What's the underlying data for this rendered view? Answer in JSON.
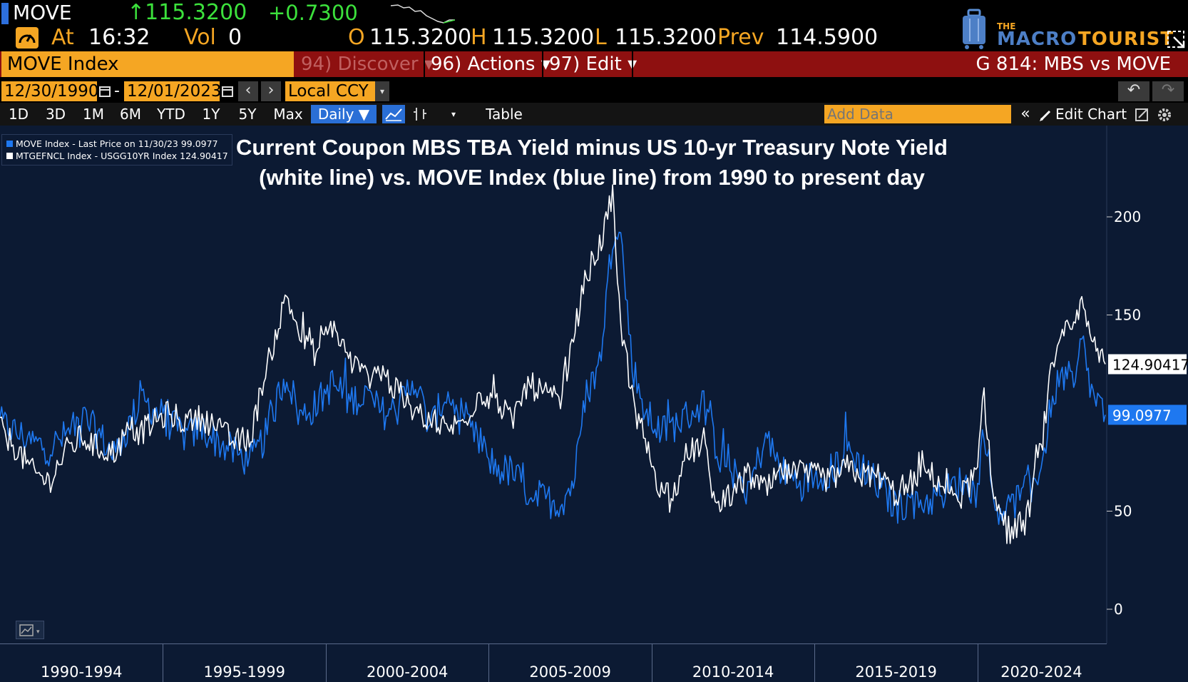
{
  "header": {
    "ticker": "MOVE",
    "last": "↑115.3200",
    "change": "+0.7300",
    "at_label": "At",
    "time": "16:32",
    "vol_label": "Vol",
    "vol": "0",
    "o_label": "O",
    "open": "115.3200",
    "h_label": "H",
    "high": "115.3200",
    "l_label": "L",
    "low": "115.3200",
    "prev_label": "Prev",
    "prev": "114.5900",
    "logo_small": "THE",
    "logo_word1": "MACRO",
    "logo_word2": "TOURIST"
  },
  "function_bar": {
    "security": "MOVE Index",
    "discover": "94) Discover ▾",
    "actions": "96) Actions ▾",
    "edit": "97) Edit ▾",
    "page_title": "G 814: MBS vs MOVE"
  },
  "controls": {
    "start_date": "12/30/1990",
    "end_date": "12/01/2023",
    "date_sep": "-",
    "currency": "Local CCY",
    "periods": [
      "1D",
      "3D",
      "1M",
      "6M",
      "YTD",
      "1Y",
      "5Y",
      "Max"
    ],
    "frequency": "Daily ▼",
    "table": "Table",
    "add_data_placeholder": "Add Data",
    "edit_chart": "Edit Chart"
  },
  "chart_data": {
    "type": "line",
    "title": "Current Coupon MBS TBA Yield minus US 10-yr Treasury Note Yield (white line) vs. MOVE Index (blue line) from 1990 to present day",
    "ylim": [
      0,
      230
    ],
    "yticks": [
      0,
      50,
      150,
      200
    ],
    "x_range": [
      1990.0,
      2023.92
    ],
    "x_groups": [
      "1990-1994",
      "1995-1999",
      "2000-2004",
      "2005-2009",
      "2010-2014",
      "2015-2019",
      "2020-2024"
    ],
    "legend_entries": [
      "MOVE Index - Last Price on 11/30/23 99.0977",
      "MTGEFNCL Index - USGG10YR Index     124.90417"
    ],
    "colors": {
      "move": "#1e78f0",
      "spread": "#ffffff",
      "bg": "#0c1a33"
    },
    "series": [
      {
        "name": "MOVE Index",
        "last_label": "99.0977",
        "x": [
          1990.0,
          1990.5,
          1991.0,
          1991.5,
          1992.0,
          1992.5,
          1993.0,
          1993.5,
          1994.0,
          1994.3,
          1994.7,
          1995.2,
          1995.7,
          1996.2,
          1996.7,
          1997.2,
          1997.7,
          1998.2,
          1998.6,
          1998.8,
          1999.2,
          1999.7,
          2000.2,
          2000.7,
          2001.2,
          2001.7,
          2002.2,
          2002.7,
          2003.2,
          2003.7,
          2004.2,
          2004.7,
          2005.2,
          2005.7,
          2006.2,
          2006.7,
          2007.2,
          2007.6,
          2008.0,
          2008.4,
          2008.8,
          2009.0,
          2009.4,
          2009.8,
          2010.3,
          2010.8,
          2011.2,
          2011.6,
          2012.0,
          2012.5,
          2013.0,
          2013.5,
          2014.0,
          2014.5,
          2015.0,
          2015.5,
          2016.0,
          2016.5,
          2017.0,
          2017.5,
          2018.0,
          2018.5,
          2019.0,
          2019.5,
          2020.0,
          2020.2,
          2020.5,
          2021.0,
          2021.5,
          2022.0,
          2022.3,
          2022.7,
          2023.0,
          2023.2,
          2023.5,
          2023.92
        ],
        "values": [
          95,
          90,
          85,
          82,
          88,
          98,
          90,
          78,
          95,
          108,
          102,
          95,
          88,
          92,
          85,
          80,
          75,
          90,
          112,
          120,
          98,
          104,
          115,
          106,
          110,
          100,
          102,
          118,
          92,
          110,
          95,
          85,
          72,
          70,
          60,
          56,
          54,
          65,
          110,
          125,
          190,
          200,
          125,
          100,
          90,
          95,
          100,
          105,
          82,
          70,
          62,
          88,
          70,
          65,
          68,
          70,
          82,
          72,
          62,
          52,
          55,
          55,
          60,
          65,
          60,
          95,
          52,
          52,
          60,
          75,
          110,
          120,
          112,
          138,
          110,
          99.0977
        ]
      },
      {
        "name": "MTGEFNCL Index - USGG10YR Index",
        "last_label": "124.90417",
        "x": [
          1990.0,
          1990.5,
          1991.0,
          1991.5,
          1992.0,
          1992.5,
          1993.0,
          1993.5,
          1994.0,
          1994.3,
          1994.7,
          1995.2,
          1995.7,
          1996.2,
          1996.7,
          1997.2,
          1997.7,
          1998.2,
          1998.6,
          1998.8,
          1999.2,
          1999.7,
          2000.2,
          2000.7,
          2001.2,
          2001.7,
          2002.2,
          2002.7,
          2003.2,
          2003.7,
          2004.2,
          2004.7,
          2005.2,
          2005.7,
          2006.2,
          2006.7,
          2007.2,
          2007.6,
          2008.0,
          2008.4,
          2008.8,
          2009.0,
          2009.4,
          2009.8,
          2010.3,
          2010.8,
          2011.2,
          2011.6,
          2012.0,
          2012.5,
          2013.0,
          2013.5,
          2014.0,
          2014.5,
          2015.0,
          2015.5,
          2016.0,
          2016.5,
          2017.0,
          2017.5,
          2018.0,
          2018.5,
          2019.0,
          2019.5,
          2020.0,
          2020.2,
          2020.5,
          2021.0,
          2021.5,
          2022.0,
          2022.3,
          2022.7,
          2023.0,
          2023.2,
          2023.5,
          2023.92
        ],
        "values": [
          92,
          82,
          70,
          65,
          80,
          88,
          82,
          80,
          92,
          90,
          95,
          100,
          95,
          98,
          92,
          85,
          88,
          125,
          148,
          160,
          140,
          130,
          145,
          128,
          118,
          122,
          110,
          100,
          98,
          92,
          95,
          110,
          108,
          95,
          115,
          110,
          105,
          140,
          170,
          185,
          210,
          150,
          110,
          85,
          60,
          62,
          80,
          85,
          50,
          60,
          68,
          60,
          70,
          68,
          68,
          66,
          72,
          68,
          68,
          58,
          65,
          70,
          62,
          58,
          70,
          110,
          55,
          40,
          45,
          88,
          125,
          140,
          145,
          155,
          135,
          124.90417
        ]
      }
    ]
  }
}
